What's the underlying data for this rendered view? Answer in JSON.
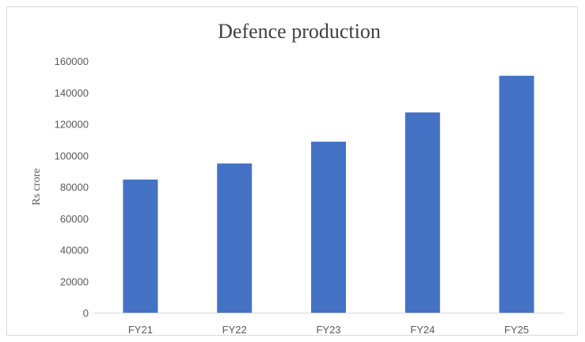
{
  "chart_data": {
    "type": "bar",
    "title": "Defence production",
    "xlabel": "",
    "ylabel": "Rs crore",
    "categories": [
      "FY21",
      "FY22",
      "FY23",
      "FY24",
      "FY25"
    ],
    "values": [
      84643,
      94845,
      108684,
      127265,
      150590
    ],
    "ylim": [
      0,
      160000
    ],
    "yticks": [
      "0",
      "20000",
      "40000",
      "60000",
      "80000",
      "100000",
      "120000",
      "140000",
      "160000"
    ],
    "grid": false,
    "legend": "none",
    "bar_color": "#4472c4"
  }
}
